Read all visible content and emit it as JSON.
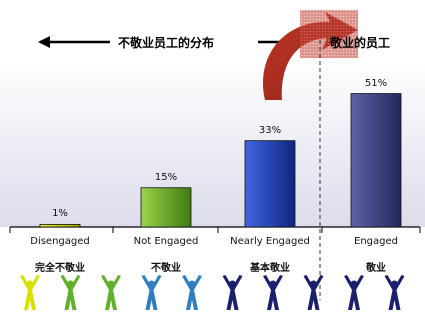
{
  "header": {
    "left_title": "不敬业员工的分布",
    "right_title": "敬业的员工"
  },
  "chart_data": {
    "type": "bar",
    "categories": [
      "Disengaged",
      "Not Engaged",
      "Nearly Engaged",
      "Engaged"
    ],
    "categories_zh": [
      "完全不敬业",
      "不敬业",
      "基本敬业",
      "敬业"
    ],
    "values": [
      1,
      15,
      33,
      51
    ],
    "value_labels": [
      "1%",
      "15%",
      "33%",
      "51%"
    ],
    "ylim": [
      0,
      60
    ],
    "grid": false,
    "colors": [
      "#c8d400",
      "#6ab023",
      "#1f3aa8",
      "#3b3f7a"
    ],
    "background": "#e8e8f2"
  },
  "figures": {
    "colors": [
      "#d8e000",
      "#5fb02a",
      "#5fb02a",
      "#2f7fc0",
      "#2f7fc0",
      "#1a1f6e",
      "#1a1f6e",
      "#1a1f6e",
      "#1a1f6e",
      "#1a1f6e"
    ],
    "icon": "person-arms-raised-icon"
  }
}
